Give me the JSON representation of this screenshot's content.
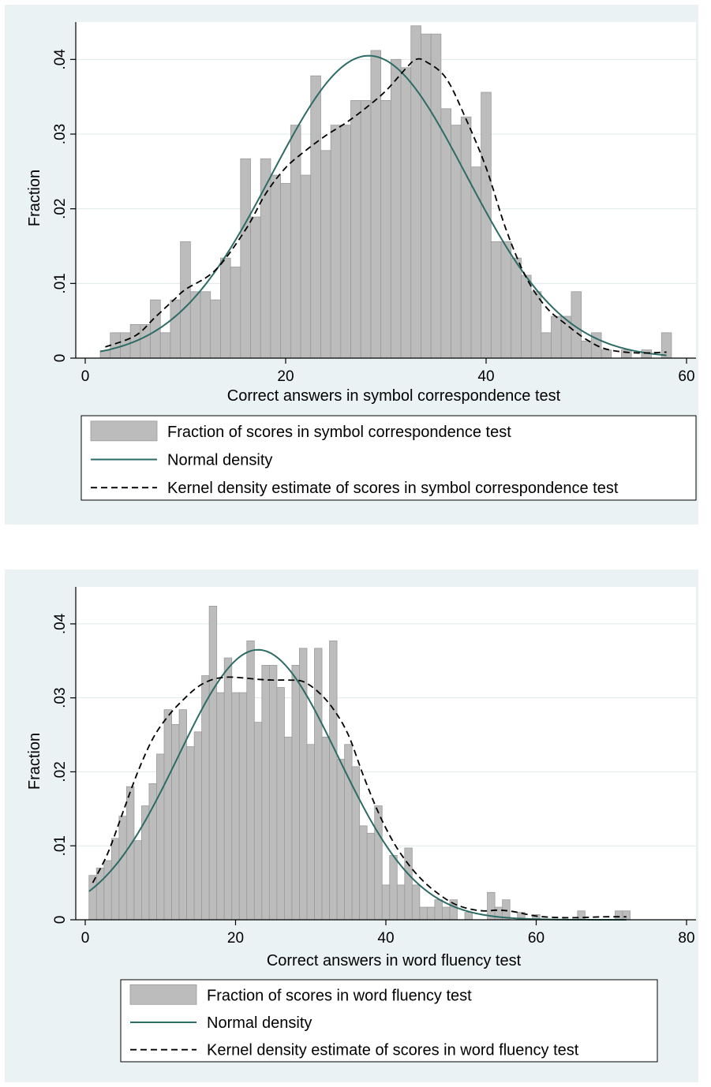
{
  "chart_data": [
    {
      "type": "bar",
      "xlabel": "Correct answers in symbol correspondence test",
      "ylabel": "Fraction",
      "xlim": [
        0,
        60
      ],
      "ylim": [
        0,
        0.045
      ],
      "xticks": [
        "0",
        "20",
        "40",
        "60"
      ],
      "yticks": [
        "0",
        ".01",
        ".02",
        ".03",
        ".04"
      ],
      "grid": "horizontal",
      "bin_width": 1,
      "bins": [
        {
          "x": 2,
          "y": 0.001
        },
        {
          "x": 3,
          "y": 0.0034
        },
        {
          "x": 4,
          "y": 0.0034
        },
        {
          "x": 5,
          "y": 0.0045
        },
        {
          "x": 6,
          "y": 0.0045
        },
        {
          "x": 7,
          "y": 0.0078
        },
        {
          "x": 8,
          "y": 0.0034
        },
        {
          "x": 9,
          "y": 0.0078
        },
        {
          "x": 10,
          "y": 0.0156
        },
        {
          "x": 11,
          "y": 0.0089
        },
        {
          "x": 12,
          "y": 0.0089
        },
        {
          "x": 13,
          "y": 0.0078
        },
        {
          "x": 14,
          "y": 0.0134
        },
        {
          "x": 15,
          "y": 0.0122
        },
        {
          "x": 16,
          "y": 0.0267
        },
        {
          "x": 17,
          "y": 0.0189
        },
        {
          "x": 18,
          "y": 0.0267
        },
        {
          "x": 19,
          "y": 0.0245
        },
        {
          "x": 20,
          "y": 0.0234
        },
        {
          "x": 21,
          "y": 0.0312
        },
        {
          "x": 22,
          "y": 0.0245
        },
        {
          "x": 23,
          "y": 0.0378
        },
        {
          "x": 24,
          "y": 0.0278
        },
        {
          "x": 25,
          "y": 0.0312
        },
        {
          "x": 26,
          "y": 0.0312
        },
        {
          "x": 27,
          "y": 0.0345
        },
        {
          "x": 28,
          "y": 0.0345
        },
        {
          "x": 29,
          "y": 0.0412
        },
        {
          "x": 30,
          "y": 0.0345
        },
        {
          "x": 31,
          "y": 0.04
        },
        {
          "x": 32,
          "y": 0.0389
        },
        {
          "x": 33,
          "y": 0.0445
        },
        {
          "x": 34,
          "y": 0.0434
        },
        {
          "x": 35,
          "y": 0.0434
        },
        {
          "x": 36,
          "y": 0.0334
        },
        {
          "x": 37,
          "y": 0.0312
        },
        {
          "x": 38,
          "y": 0.0323
        },
        {
          "x": 39,
          "y": 0.0256
        },
        {
          "x": 40,
          "y": 0.0356
        },
        {
          "x": 41,
          "y": 0.0156
        },
        {
          "x": 42,
          "y": 0.0156
        },
        {
          "x": 43,
          "y": 0.0134
        },
        {
          "x": 44,
          "y": 0.0111
        },
        {
          "x": 45,
          "y": 0.0089
        },
        {
          "x": 46,
          "y": 0.0034
        },
        {
          "x": 47,
          "y": 0.0056
        },
        {
          "x": 48,
          "y": 0.0056
        },
        {
          "x": 49,
          "y": 0.0089
        },
        {
          "x": 50,
          "y": 0.0023
        },
        {
          "x": 51,
          "y": 0.0034
        },
        {
          "x": 52,
          "y": 0.0011
        },
        {
          "x": 54,
          "y": 0.0011
        },
        {
          "x": 56,
          "y": 0.0011
        },
        {
          "x": 58,
          "y": 0.0034
        }
      ],
      "normal_density": {
        "mean": 28.3,
        "sd": 9.7,
        "scale": 0.0405
      },
      "kernel_density": [
        [
          2,
          0.0015
        ],
        [
          5,
          0.003
        ],
        [
          7,
          0.0055
        ],
        [
          9,
          0.008
        ],
        [
          10,
          0.0092
        ],
        [
          13,
          0.0118
        ],
        [
          16,
          0.0172
        ],
        [
          18,
          0.022
        ],
        [
          20,
          0.0255
        ],
        [
          22,
          0.0278
        ],
        [
          24,
          0.0298
        ],
        [
          26,
          0.0315
        ],
        [
          28,
          0.0335
        ],
        [
          30,
          0.0358
        ],
        [
          32,
          0.0388
        ],
        [
          33,
          0.04
        ],
        [
          34,
          0.0397
        ],
        [
          36,
          0.0375
        ],
        [
          38,
          0.032
        ],
        [
          40,
          0.0255
        ],
        [
          42,
          0.0172
        ],
        [
          44,
          0.0108
        ],
        [
          46,
          0.0068
        ],
        [
          48,
          0.0045
        ],
        [
          50,
          0.0025
        ],
        [
          52,
          0.0012
        ],
        [
          55,
          0.0007
        ],
        [
          58,
          0.0008
        ]
      ],
      "legend": [
        {
          "label": "Fraction of scores in symbol correspondence test",
          "kind": "bar"
        },
        {
          "label": "Normal density",
          "kind": "line"
        },
        {
          "label": "Kernel density estimate of scores in symbol correspondence test",
          "kind": "dash"
        }
      ],
      "legend_position": "bottom",
      "colors": {
        "bar": "#bcbcbc",
        "bar_edge": "#9a9a9a",
        "normal": "#2d6b66",
        "kernel": "#000000",
        "background": "#eaf2f3",
        "grid": "#dfe9ea"
      }
    },
    {
      "type": "bar",
      "xlabel": "Correct answers in word fluency test",
      "ylabel": "Fraction",
      "xlim": [
        0,
        80
      ],
      "ylim": [
        0,
        0.045
      ],
      "xticks": [
        "0",
        "20",
        "40",
        "60",
        "80"
      ],
      "yticks": [
        "0",
        ".01",
        ".02",
        ".03",
        ".04"
      ],
      "grid": "horizontal",
      "bin_width": 1,
      "bins": [
        {
          "x": 1,
          "y": 0.006
        },
        {
          "x": 2,
          "y": 0.007
        },
        {
          "x": 3,
          "y": 0.008
        },
        {
          "x": 4,
          "y": 0.011
        },
        {
          "x": 5,
          "y": 0.014
        },
        {
          "x": 6,
          "y": 0.018
        },
        {
          "x": 7,
          "y": 0.0107
        },
        {
          "x": 8,
          "y": 0.0154
        },
        {
          "x": 9,
          "y": 0.0184
        },
        {
          "x": 10,
          "y": 0.0224
        },
        {
          "x": 11,
          "y": 0.0284
        },
        {
          "x": 12,
          "y": 0.0264
        },
        {
          "x": 13,
          "y": 0.0284
        },
        {
          "x": 14,
          "y": 0.0234
        },
        {
          "x": 15,
          "y": 0.0254
        },
        {
          "x": 16,
          "y": 0.033
        },
        {
          "x": 17,
          "y": 0.0424
        },
        {
          "x": 18,
          "y": 0.0307
        },
        {
          "x": 19,
          "y": 0.0354
        },
        {
          "x": 20,
          "y": 0.0307
        },
        {
          "x": 21,
          "y": 0.0307
        },
        {
          "x": 22,
          "y": 0.0377
        },
        {
          "x": 23,
          "y": 0.0267
        },
        {
          "x": 24,
          "y": 0.0344
        },
        {
          "x": 25,
          "y": 0.0344
        },
        {
          "x": 26,
          "y": 0.0314
        },
        {
          "x": 27,
          "y": 0.0247
        },
        {
          "x": 28,
          "y": 0.0344
        },
        {
          "x": 29,
          "y": 0.0367
        },
        {
          "x": 30,
          "y": 0.0237
        },
        {
          "x": 31,
          "y": 0.0367
        },
        {
          "x": 32,
          "y": 0.0247
        },
        {
          "x": 33,
          "y": 0.0377
        },
        {
          "x": 34,
          "y": 0.0217
        },
        {
          "x": 35,
          "y": 0.0237
        },
        {
          "x": 36,
          "y": 0.0207
        },
        {
          "x": 37,
          "y": 0.0127
        },
        {
          "x": 38,
          "y": 0.0117
        },
        {
          "x": 39,
          "y": 0.0154
        },
        {
          "x": 40,
          "y": 0.0047
        },
        {
          "x": 41,
          "y": 0.0087
        },
        {
          "x": 42,
          "y": 0.0047
        },
        {
          "x": 43,
          "y": 0.0097
        },
        {
          "x": 44,
          "y": 0.0047
        },
        {
          "x": 45,
          "y": 0.0017
        },
        {
          "x": 46,
          "y": 0.0017
        },
        {
          "x": 47,
          "y": 0.0027
        },
        {
          "x": 48,
          "y": 0.0017
        },
        {
          "x": 49,
          "y": 0.0027
        },
        {
          "x": 51,
          "y": 0.001
        },
        {
          "x": 54,
          "y": 0.0037
        },
        {
          "x": 55,
          "y": 0.0017
        },
        {
          "x": 56,
          "y": 0.0027
        },
        {
          "x": 58,
          "y": 0.001
        },
        {
          "x": 60,
          "y": 0.0007
        },
        {
          "x": 66,
          "y": 0.0012
        },
        {
          "x": 71,
          "y": 0.0012
        },
        {
          "x": 72,
          "y": 0.0012
        }
      ],
      "normal_density": {
        "mean": 23,
        "sd": 10.6,
        "scale": 0.0365
      },
      "kernel_density": [
        [
          1,
          0.005
        ],
        [
          3,
          0.009
        ],
        [
          5,
          0.0145
        ],
        [
          7,
          0.02
        ],
        [
          9,
          0.0245
        ],
        [
          11,
          0.0275
        ],
        [
          13,
          0.0297
        ],
        [
          15,
          0.0315
        ],
        [
          17,
          0.0325
        ],
        [
          19,
          0.0328
        ],
        [
          21,
          0.0327
        ],
        [
          23,
          0.0325
        ],
        [
          25,
          0.0324
        ],
        [
          27,
          0.0324
        ],
        [
          29,
          0.0322
        ],
        [
          31,
          0.0308
        ],
        [
          33,
          0.0285
        ],
        [
          35,
          0.025
        ],
        [
          37,
          0.0195
        ],
        [
          39,
          0.0145
        ],
        [
          41,
          0.0105
        ],
        [
          43,
          0.0075
        ],
        [
          45,
          0.0052
        ],
        [
          47,
          0.0035
        ],
        [
          49,
          0.0022
        ],
        [
          51,
          0.0015
        ],
        [
          53,
          0.0012
        ],
        [
          55,
          0.0013
        ],
        [
          57,
          0.0011
        ],
        [
          60,
          0.0005
        ],
        [
          63,
          0.0003
        ],
        [
          66,
          0.0003
        ],
        [
          69,
          0.0004
        ],
        [
          72,
          0.0004
        ]
      ],
      "legend": [
        {
          "label": "Fraction of scores in word fluency test",
          "kind": "bar"
        },
        {
          "label": "Normal density",
          "kind": "line"
        },
        {
          "label": "Kernel density estimate of scores in word fluency test",
          "kind": "dash"
        }
      ],
      "legend_position": "bottom",
      "colors": {
        "bar": "#bcbcbc",
        "bar_edge": "#9a9a9a",
        "normal": "#2d6b66",
        "kernel": "#000000",
        "background": "#eaf2f3",
        "grid": "#dfe9ea"
      }
    }
  ]
}
